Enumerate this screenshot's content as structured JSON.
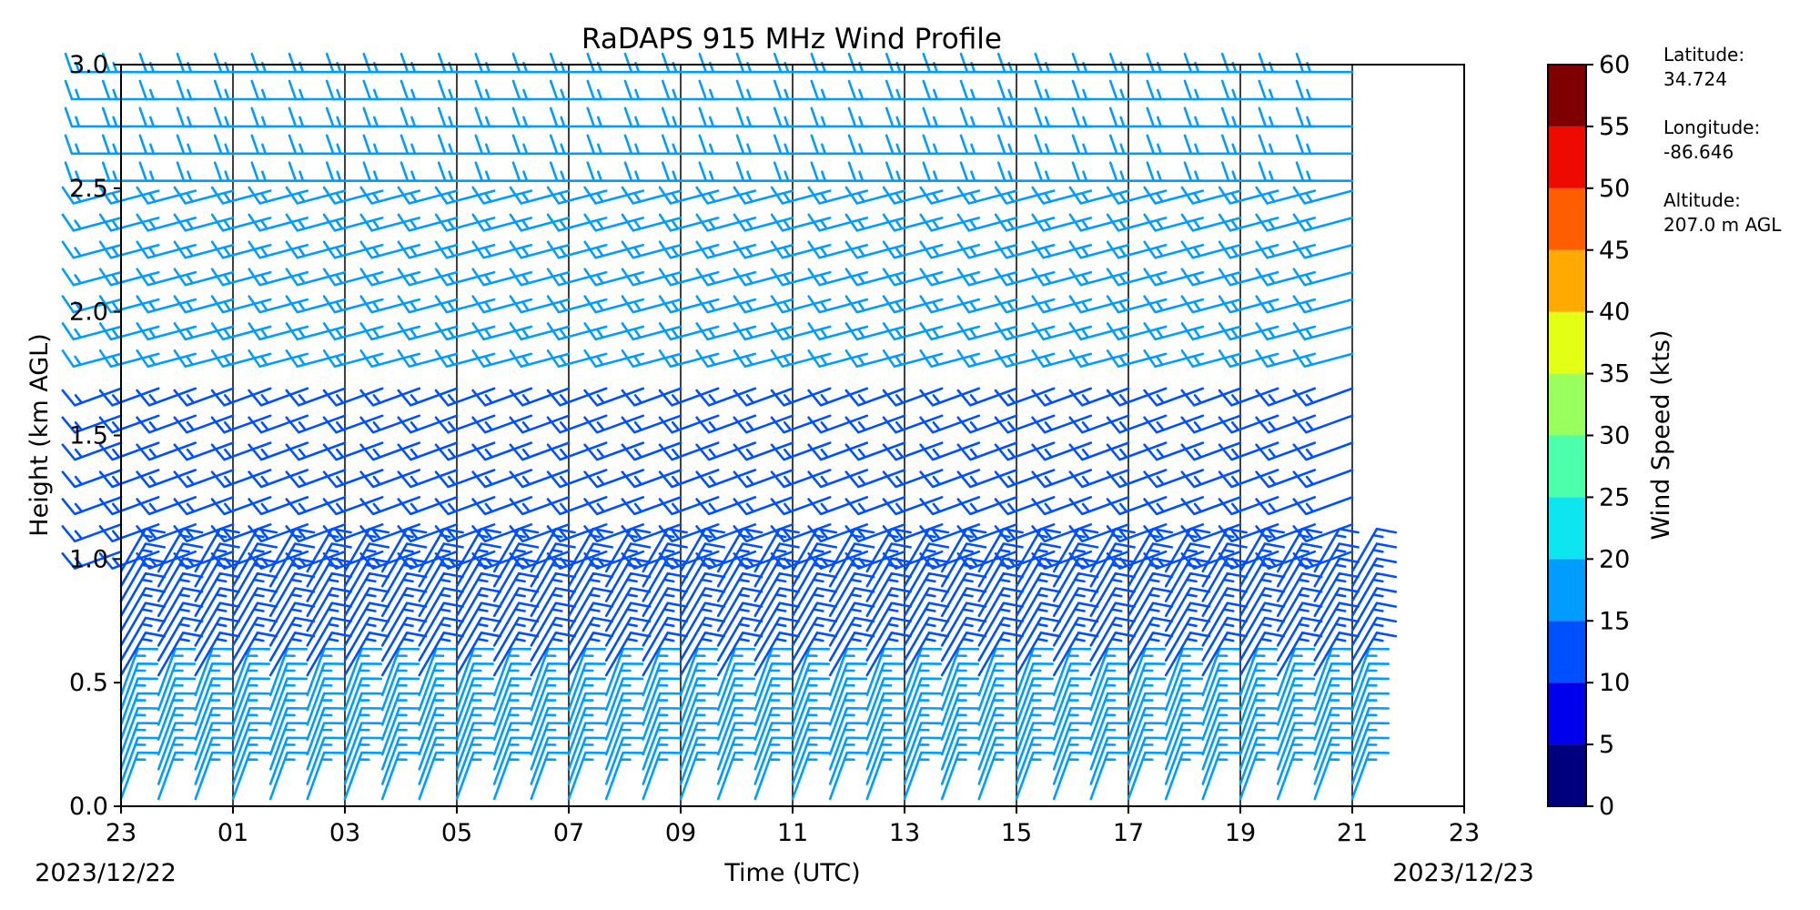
{
  "chart_data": {
    "type": "wind_barb_profile",
    "title": "RaDAPS 915 MHz Wind Profile",
    "xlabel": "Time (UTC)",
    "ylabel": "Height (km AGL)",
    "x_ticks": [
      "23",
      "01",
      "03",
      "05",
      "07",
      "09",
      "11",
      "13",
      "15",
      "17",
      "19",
      "21",
      "23"
    ],
    "x_range_hours": [
      0,
      24
    ],
    "start_date_label": "2023/12/22",
    "end_date_label": "2023/12/23",
    "y_ticks": [
      "0.0",
      "0.5",
      "1.0",
      "1.5",
      "2.0",
      "2.5",
      "3.0"
    ],
    "ylim": [
      0,
      3.0
    ],
    "grid": "vertical lines at every 2-hour tick",
    "colorbar": {
      "label": "Wind Speed (kts)",
      "ticks": [
        "0",
        "5",
        "10",
        "15",
        "20",
        "25",
        "30",
        "35",
        "40",
        "45",
        "50",
        "55",
        "60"
      ],
      "range": [
        0,
        60
      ],
      "colors": [
        "#00007f",
        "#0000ed",
        "#0050ff",
        "#009cff",
        "#0de5f0",
        "#4bffab",
        "#98ff5f",
        "#e3ff13",
        "#ffaa00",
        "#ff5e00",
        "#ee0a00",
        "#7f0000"
      ]
    },
    "station": [
      {
        "label": "Latitude:",
        "value": "34.724"
      },
      {
        "label": "Longitude:",
        "value": "-86.646"
      },
      {
        "label": "Altitude:",
        "value": "207.0 m AGL"
      }
    ],
    "barb_columns_hours": [
      0.0,
      0.67,
      1.33,
      2.0,
      2.67,
      3.33,
      4.0,
      4.67,
      5.33,
      6.0,
      6.67,
      7.33,
      8.0,
      8.67,
      9.33,
      10.0,
      10.67,
      11.33,
      12.0,
      12.67,
      13.33,
      14.0,
      14.67,
      15.33,
      16.0,
      16.67,
      17.33,
      18.0,
      18.67,
      19.33,
      20.0,
      20.67,
      21.33,
      22.0
    ],
    "layers": [
      {
        "height_km": [
          0.0,
          0.5
        ],
        "speed_kts": 17,
        "direction_deg": 20
      },
      {
        "height_km": [
          0.5,
          1.0
        ],
        "speed_kts": 14,
        "direction_deg": 30
      },
      {
        "height_km": [
          1.0,
          1.8
        ],
        "speed_kts": 13,
        "direction_deg": 250
      },
      {
        "height_km": [
          1.8,
          2.5
        ],
        "speed_kts": 17,
        "direction_deg": 255
      },
      {
        "height_km": [
          2.5,
          3.0
        ],
        "speed_kts": 15,
        "direction_deg": 270
      }
    ]
  }
}
